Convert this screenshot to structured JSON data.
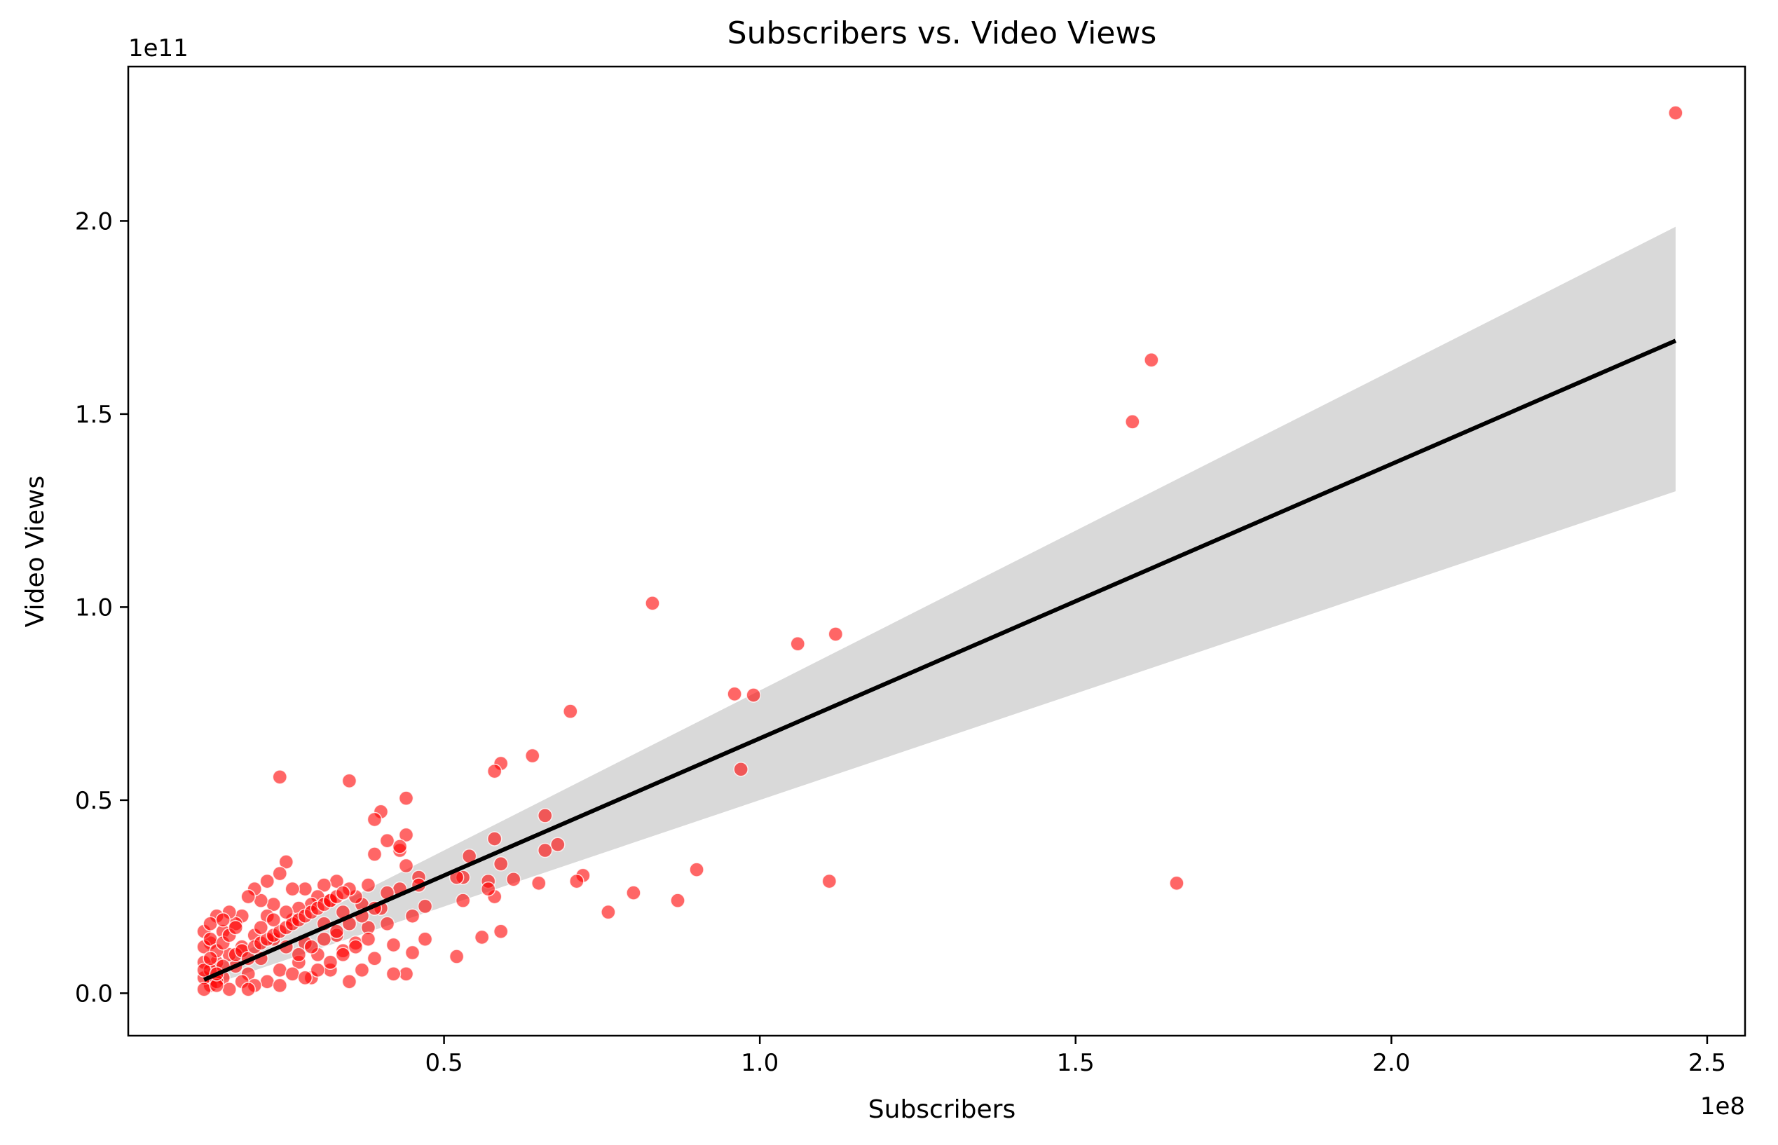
{
  "chart_data": {
    "type": "scatter",
    "title": "Subscribers vs. Video Views",
    "xlabel": "Subscribers",
    "ylabel": "Video Views",
    "x_offset_label": "1e8",
    "y_offset_label": "1e11",
    "xlim": [
      0.0,
      2.56
    ],
    "ylim": [
      -0.11,
      2.4
    ],
    "x_ticks": [
      {
        "value": 0.5,
        "label": "0.5"
      },
      {
        "value": 1.0,
        "label": "1.0"
      },
      {
        "value": 1.5,
        "label": "1.5"
      },
      {
        "value": 2.0,
        "label": "2.0"
      },
      {
        "value": 2.5,
        "label": "2.5"
      }
    ],
    "y_ticks": [
      {
        "value": 0.0,
        "label": "0.0"
      },
      {
        "value": 0.5,
        "label": "0.5"
      },
      {
        "value": 1.0,
        "label": "1.0"
      },
      {
        "value": 1.5,
        "label": "1.5"
      },
      {
        "value": 2.0,
        "label": "2.0"
      }
    ],
    "grid": false,
    "colors": {
      "points": "#ff0000",
      "point_edge": "#ffffff",
      "regression_line": "#000000",
      "confidence_band": "#d9d9d9"
    },
    "series": [
      {
        "kind": "points",
        "x": [
          2.45,
          1.62,
          1.59,
          1.66,
          1.12,
          1.11,
          1.06,
          0.99,
          0.96,
          0.97,
          0.9,
          0.87,
          0.83,
          0.8,
          0.76,
          0.72,
          0.71,
          0.7,
          0.68,
          0.66,
          0.66,
          0.65,
          0.64,
          0.61,
          0.59,
          0.59,
          0.59,
          0.58,
          0.58,
          0.58,
          0.57,
          0.57,
          0.56,
          0.54,
          0.53,
          0.53,
          0.52,
          0.52,
          0.47,
          0.47,
          0.46,
          0.46,
          0.45,
          0.45,
          0.44,
          0.44,
          0.44,
          0.44,
          0.43,
          0.43,
          0.43,
          0.42,
          0.42,
          0.41,
          0.41,
          0.41,
          0.4,
          0.4,
          0.39,
          0.39,
          0.39,
          0.38,
          0.38,
          0.37,
          0.37,
          0.36,
          0.36,
          0.35,
          0.35,
          0.35,
          0.34,
          0.34,
          0.33,
          0.33,
          0.32,
          0.32,
          0.31,
          0.31,
          0.3,
          0.3,
          0.29,
          0.29,
          0.28,
          0.28,
          0.27,
          0.27,
          0.26,
          0.26,
          0.25,
          0.25,
          0.24,
          0.24,
          0.24,
          0.23,
          0.23,
          0.22,
          0.22,
          0.21,
          0.21,
          0.2,
          0.2,
          0.19,
          0.19,
          0.18,
          0.18,
          0.17,
          0.17,
          0.16,
          0.16,
          0.15,
          0.15,
          0.14,
          0.14,
          0.13,
          0.13,
          0.12,
          0.12,
          0.12,
          0.12,
          0.12,
          0.13,
          0.13,
          0.14,
          0.14,
          0.15,
          0.15,
          0.16,
          0.17,
          0.18,
          0.19,
          0.2,
          0.21,
          0.22,
          0.23,
          0.24,
          0.25,
          0.26,
          0.27,
          0.28,
          0.29,
          0.3,
          0.31,
          0.32,
          0.33,
          0.34,
          0.22,
          0.24,
          0.26,
          0.28,
          0.3,
          0.32,
          0.34,
          0.36,
          0.38,
          0.2,
          0.18,
          0.16,
          0.14,
          0.13,
          0.27,
          0.29,
          0.31,
          0.33,
          0.35,
          0.37,
          0.39,
          0.21,
          0.23,
          0.25,
          0.17,
          0.15,
          0.19,
          0.12,
          0.13,
          0.14
        ],
        "y": [
          2.28,
          1.64,
          1.48,
          0.285,
          0.93,
          0.29,
          0.905,
          0.772,
          0.775,
          0.58,
          0.32,
          0.24,
          1.01,
          0.26,
          0.21,
          0.305,
          0.29,
          0.73,
          0.385,
          0.46,
          0.37,
          0.285,
          0.615,
          0.295,
          0.595,
          0.335,
          0.16,
          0.575,
          0.4,
          0.25,
          0.29,
          0.27,
          0.145,
          0.355,
          0.3,
          0.24,
          0.3,
          0.095,
          0.225,
          0.14,
          0.3,
          0.28,
          0.2,
          0.105,
          0.505,
          0.41,
          0.33,
          0.05,
          0.37,
          0.38,
          0.27,
          0.125,
          0.05,
          0.395,
          0.26,
          0.18,
          0.47,
          0.22,
          0.45,
          0.36,
          0.09,
          0.28,
          0.17,
          0.23,
          0.06,
          0.25,
          0.13,
          0.55,
          0.27,
          0.03,
          0.21,
          0.11,
          0.29,
          0.15,
          0.24,
          0.06,
          0.28,
          0.18,
          0.25,
          0.1,
          0.23,
          0.04,
          0.27,
          0.13,
          0.22,
          0.08,
          0.27,
          0.19,
          0.34,
          0.12,
          0.56,
          0.31,
          0.06,
          0.23,
          0.14,
          0.29,
          0.2,
          0.24,
          0.09,
          0.27,
          0.15,
          0.25,
          0.05,
          0.2,
          0.12,
          0.18,
          0.07,
          0.21,
          0.1,
          0.16,
          0.04,
          0.2,
          0.08,
          0.13,
          0.02,
          0.16,
          0.12,
          0.08,
          0.04,
          0.01,
          0.14,
          0.06,
          0.11,
          0.03,
          0.13,
          0.07,
          0.15,
          0.1,
          0.11,
          0.09,
          0.12,
          0.13,
          0.14,
          0.15,
          0.16,
          0.17,
          0.18,
          0.19,
          0.2,
          0.21,
          0.22,
          0.23,
          0.24,
          0.25,
          0.26,
          0.03,
          0.02,
          0.05,
          0.04,
          0.06,
          0.08,
          0.1,
          0.12,
          0.14,
          0.02,
          0.03,
          0.01,
          0.02,
          0.18,
          0.1,
          0.12,
          0.14,
          0.16,
          0.18,
          0.2,
          0.22,
          0.17,
          0.19,
          0.21,
          0.17,
          0.19,
          0.01,
          0.06,
          0.09,
          0.05
        ]
      },
      {
        "kind": "regression",
        "x": [
          0.12,
          2.45
        ],
        "y": [
          0.035,
          1.69
        ],
        "ci_lower": [
          0.015,
          1.3
        ],
        "ci_upper": [
          0.055,
          1.985
        ]
      }
    ]
  }
}
